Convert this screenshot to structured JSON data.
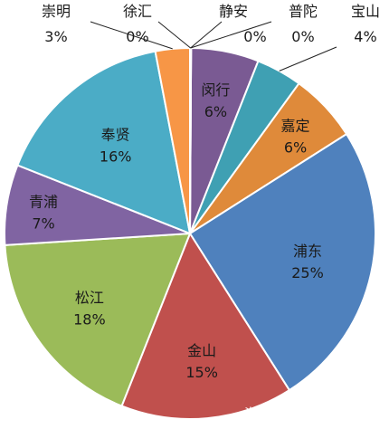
{
  "chart_data": {
    "type": "pie",
    "title": "",
    "slices": [
      {
        "label": "闵行",
        "value": 6,
        "value_label": "6%",
        "color": "#7a5a93"
      },
      {
        "label": "宝山",
        "value": 4,
        "value_label": "4%",
        "color": "#3fa0b3"
      },
      {
        "label": "嘉定",
        "value": 6,
        "value_label": "6%",
        "color": "#df8a3a"
      },
      {
        "label": "浦东",
        "value": 25,
        "value_label": "25%",
        "color": "#4f81bd"
      },
      {
        "label": "金山",
        "value": 15,
        "value_label": "15%",
        "color": "#c0504d"
      },
      {
        "label": "松江",
        "value": 18,
        "value_label": "18%",
        "color": "#9bbb59"
      },
      {
        "label": "青浦",
        "value": 7,
        "value_label": "7%",
        "color": "#8064a2"
      },
      {
        "label": "奉贤",
        "value": 16,
        "value_label": "16%",
        "color": "#4bacc6"
      },
      {
        "label": "崇明",
        "value": 3,
        "value_label": "3%",
        "color": "#f79646"
      },
      {
        "label": "徐汇",
        "value": 0,
        "value_label": "0%",
        "color": "#2c4d75"
      },
      {
        "label": "静安",
        "value": 0,
        "value_label": "0%",
        "color": "#772c2a"
      },
      {
        "label": "普陀",
        "value": 0,
        "value_label": "0%",
        "color": "#5f7530"
      }
    ]
  },
  "watermark": "头条号 / 飘马商业地产"
}
